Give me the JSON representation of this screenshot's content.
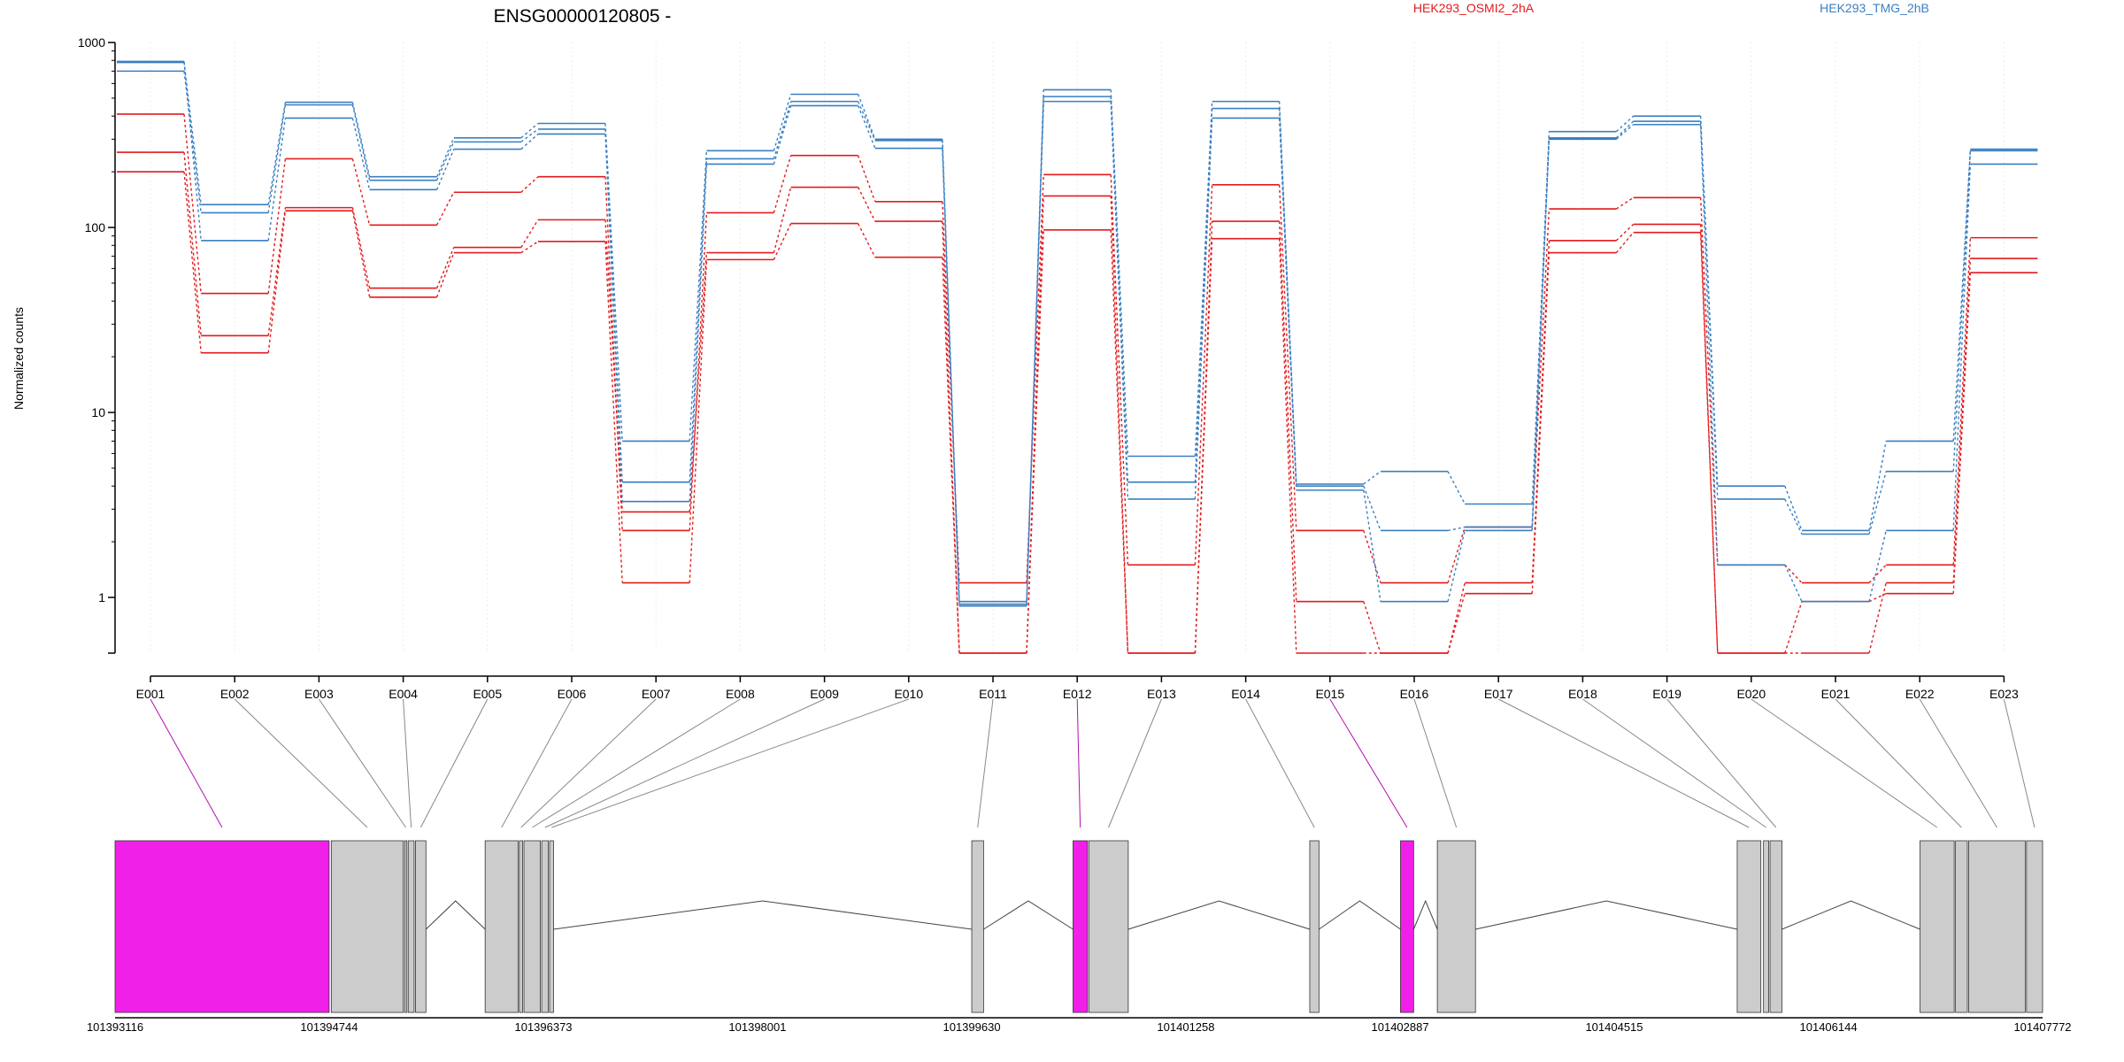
{
  "chart_data": {
    "type": "line",
    "title": "ENSG00000120805 -",
    "ylabel": "Normalized counts",
    "yscale": "log",
    "ylim": [
      0.5,
      1000
    ],
    "y_ticks": [
      "1000",
      "100",
      "10",
      "1"
    ],
    "categories": [
      "E001",
      "E002",
      "E003",
      "E004",
      "E005",
      "E006",
      "E007",
      "E008",
      "E009",
      "E010",
      "E011",
      "E012",
      "E013",
      "E014",
      "E015",
      "E016",
      "E017",
      "E018",
      "E019",
      "E020",
      "E021",
      "E022",
      "E023"
    ],
    "legend_position": "top",
    "series": [
      {
        "name": "HEK293_OSMI2_2hA",
        "group": "HEK293_OSMI2_2hA",
        "color": "#e31a1c",
        "values": [
          410,
          44,
          235,
          103,
          155,
          188,
          2.3,
          120,
          245,
          138,
          1.2,
          193,
          1.5,
          170,
          2.3,
          1.2,
          2.4,
          126,
          145,
          1.5,
          1.2,
          1.5,
          88
        ]
      },
      {
        "name": "HEK293_OSMI2_2hA",
        "group": "HEK293_OSMI2_2hA",
        "color": "#e31a1c",
        "values": [
          255,
          26,
          128,
          47,
          78,
          110,
          2.9,
          73,
          165,
          108,
          0.5,
          148,
          0.5,
          108,
          0.95,
          0.5,
          1.2,
          85,
          104,
          0.5,
          0.5,
          1.2,
          68
        ]
      },
      {
        "name": "HEK293_OSMI2_2hA",
        "group": "HEK293_OSMI2_2hA",
        "color": "#e31a1c",
        "values": [
          200,
          21,
          123,
          42,
          73,
          84,
          1.2,
          67,
          105,
          69,
          0.5,
          97,
          0.5,
          87,
          0.5,
          0.5,
          1.05,
          73,
          94,
          0.5,
          0.95,
          1.05,
          57
        ]
      },
      {
        "name": "HEK293_TMG_2hB",
        "group": "HEK293_TMG_2hB",
        "color": "#3a7fc0",
        "values": [
          780,
          133,
          475,
          188,
          305,
          365,
          7.0,
          260,
          525,
          300,
          0.95,
          555,
          5.8,
          480,
          4.1,
          4.8,
          3.2,
          330,
          400,
          4.0,
          2.3,
          7.0,
          265
        ]
      },
      {
        "name": "HEK293_TMG_2hB",
        "group": "HEK293_TMG_2hB",
        "color": "#3a7fc0",
        "values": [
          700,
          120,
          460,
          180,
          290,
          340,
          4.2,
          235,
          480,
          295,
          0.92,
          510,
          4.2,
          440,
          4.0,
          2.3,
          2.4,
          305,
          375,
          3.4,
          2.2,
          4.8,
          260
        ]
      },
      {
        "name": "HEK293_TMG_2hB",
        "group": "HEK293_TMG_2hB",
        "color": "#3a7fc0",
        "values": [
          790,
          85,
          390,
          160,
          265,
          320,
          3.3,
          220,
          455,
          268,
          0.9,
          480,
          3.4,
          390,
          3.8,
          0.95,
          2.3,
          300,
          360,
          1.5,
          0.95,
          2.3,
          220
        ]
      }
    ],
    "legend": [
      "HEK293_OSMI2_2hA",
      "HEK293_TMG_2hB"
    ],
    "gene_model": {
      "coordinates": [
        "101393116",
        "101394744",
        "101396373",
        "101398001",
        "101399630",
        "101401258",
        "101402887",
        "101404515",
        "101406144",
        "101407772"
      ],
      "highlight_color": "#f020e8",
      "exon_color": "#cccccc",
      "highlighted_exons": [
        "E001",
        "E012",
        "E015"
      ]
    }
  }
}
